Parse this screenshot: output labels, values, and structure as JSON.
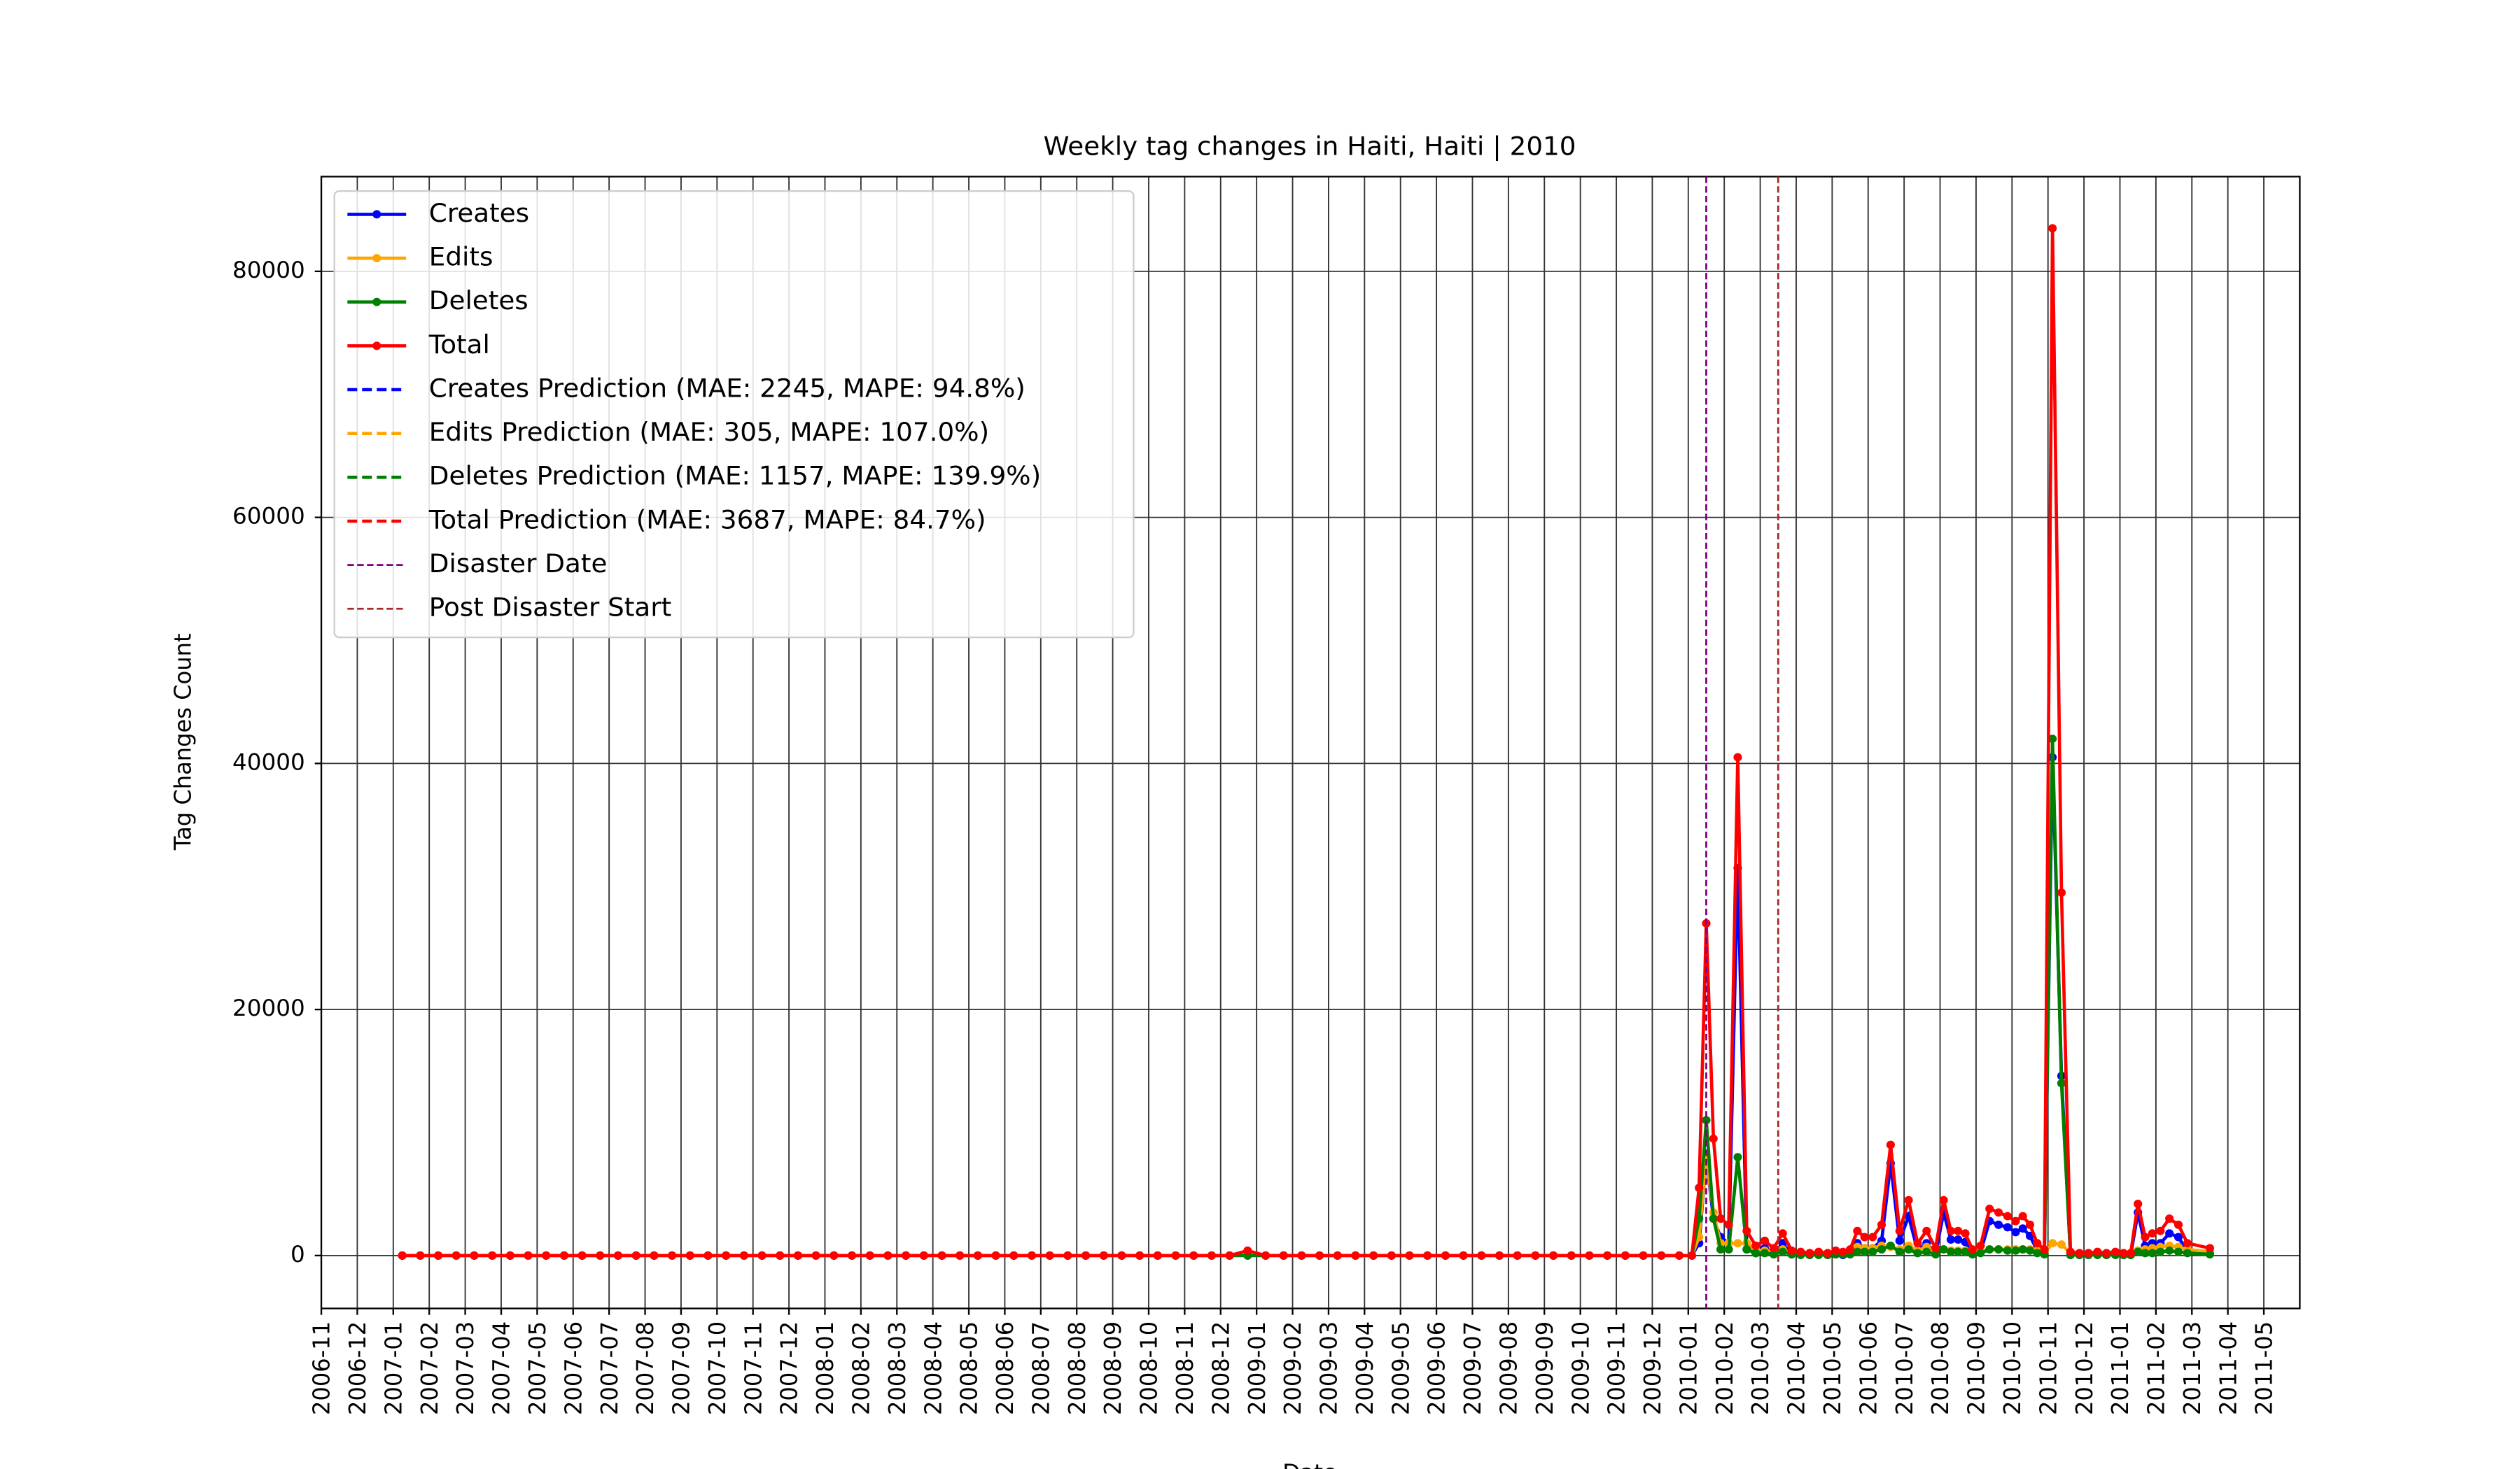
{
  "chart_data": {
    "type": "line",
    "title": "Weekly tag changes in Haiti, Haiti | 2010",
    "xlabel": "Date",
    "ylabel": "Tag Changes Count",
    "xlim": [
      "2006-11",
      "2011-06"
    ],
    "ylim": [
      -4300,
      87700
    ],
    "yticks": [
      0,
      20000,
      40000,
      60000,
      80000
    ],
    "xticks": [
      "2006-11",
      "2006-12",
      "2007-01",
      "2007-02",
      "2007-03",
      "2007-04",
      "2007-05",
      "2007-06",
      "2007-07",
      "2007-08",
      "2007-09",
      "2007-10",
      "2007-11",
      "2007-12",
      "2008-01",
      "2008-02",
      "2008-03",
      "2008-04",
      "2008-05",
      "2008-06",
      "2008-07",
      "2008-08",
      "2008-09",
      "2008-10",
      "2008-11",
      "2008-12",
      "2009-01",
      "2009-02",
      "2009-03",
      "2009-04",
      "2009-05",
      "2009-06",
      "2009-07",
      "2009-08",
      "2009-09",
      "2009-10",
      "2009-11",
      "2009-12",
      "2010-01",
      "2010-02",
      "2010-03",
      "2010-04",
      "2010-05",
      "2010-06",
      "2010-07",
      "2010-08",
      "2010-09",
      "2010-10",
      "2010-11",
      "2010-12",
      "2011-01",
      "2011-02",
      "2011-03",
      "2011-04",
      "2011-05"
    ],
    "grid": true,
    "legend": "upper left",
    "x": [
      "2007-01",
      "2007-01",
      "2007-02",
      "2007-02",
      "2007-03",
      "2007-03",
      "2007-04",
      "2007-04",
      "2007-05",
      "2007-05",
      "2007-06",
      "2007-06",
      "2007-07",
      "2007-07",
      "2007-08",
      "2007-08",
      "2007-09",
      "2007-09",
      "2007-10",
      "2007-10",
      "2007-11",
      "2007-11",
      "2007-12",
      "2007-12",
      "2008-01",
      "2008-01",
      "2008-02",
      "2008-02",
      "2008-03",
      "2008-03",
      "2008-04",
      "2008-04",
      "2008-05",
      "2008-05",
      "2008-06",
      "2008-06",
      "2008-07",
      "2008-07",
      "2008-08",
      "2008-08",
      "2008-09",
      "2008-09",
      "2008-10",
      "2008-10",
      "2008-11",
      "2008-11",
      "2008-12",
      "2008-12",
      "2009-01",
      "2009-01",
      "2009-02",
      "2009-02",
      "2009-03",
      "2009-03",
      "2009-04",
      "2009-04",
      "2009-05",
      "2009-05",
      "2009-06",
      "2009-06",
      "2009-07",
      "2009-07",
      "2009-08",
      "2009-08",
      "2009-09",
      "2009-09",
      "2009-10",
      "2009-10",
      "2009-11",
      "2009-11",
      "2009-12",
      "2009-12",
      "2010-01",
      "2010-01",
      "2010-01",
      "2010-01",
      "2010-01",
      "2010-02",
      "2010-02",
      "2010-02",
      "2010-02",
      "2010-03",
      "2010-03",
      "2010-03",
      "2010-03",
      "2010-04",
      "2010-04",
      "2010-04",
      "2010-04",
      "2010-05",
      "2010-05",
      "2010-05",
      "2010-05",
      "2010-05",
      "2010-06",
      "2010-06",
      "2010-06",
      "2010-06",
      "2010-07",
      "2010-07",
      "2010-07",
      "2010-07",
      "2010-08",
      "2010-08",
      "2010-08",
      "2010-08",
      "2010-08",
      "2010-09",
      "2010-09",
      "2010-09",
      "2010-09",
      "2010-10",
      "2010-10",
      "2010-10",
      "2010-10",
      "2010-10",
      "2010-11",
      "2010-11",
      "2010-11",
      "2010-11",
      "2010-12",
      "2010-12",
      "2010-12",
      "2010-12",
      "2011-01",
      "2011-01",
      "2011-01",
      "2011-01",
      "2011-01",
      "2011-02",
      "2011-02",
      "2011-02",
      "2011-02",
      "2011-03"
    ],
    "series": [
      {
        "name": "Creates",
        "color": "#0000ff",
        "values": [
          0,
          0,
          0,
          0,
          0,
          0,
          0,
          0,
          0,
          0,
          0,
          0,
          0,
          0,
          0,
          0,
          0,
          0,
          0,
          0,
          0,
          0,
          0,
          0,
          0,
          0,
          0,
          0,
          0,
          0,
          0,
          0,
          0,
          0,
          0,
          0,
          0,
          0,
          0,
          0,
          0,
          0,
          0,
          0,
          0,
          0,
          0,
          0,
          0,
          0,
          0,
          0,
          0,
          0,
          0,
          0,
          0,
          0,
          0,
          0,
          0,
          0,
          0,
          0,
          0,
          0,
          0,
          0,
          0,
          0,
          0,
          0,
          0,
          1000,
          8000,
          3000,
          1500,
          1000,
          31500,
          500,
          200,
          600,
          200,
          1000,
          100,
          100,
          50,
          100,
          50,
          100,
          50,
          200,
          1000,
          600,
          600,
          1200,
          7500,
          1200,
          3200,
          400,
          1000,
          200,
          3500,
          1300,
          1300,
          1100,
          200,
          300,
          2800,
          2500,
          2300,
          1900,
          2200,
          1600,
          400,
          200,
          40500,
          14600,
          50,
          50,
          50,
          100,
          50,
          100,
          50,
          50,
          3500,
          800,
          1000,
          1000,
          1800,
          1500,
          300,
          200
        ]
      },
      {
        "name": "Edits",
        "color": "#ffa500",
        "values": [
          0,
          0,
          0,
          0,
          0,
          0,
          0,
          0,
          0,
          0,
          0,
          0,
          0,
          0,
          0,
          0,
          0,
          0,
          0,
          0,
          0,
          0,
          0,
          0,
          0,
          0,
          0,
          0,
          0,
          0,
          0,
          0,
          0,
          0,
          0,
          0,
          0,
          0,
          0,
          0,
          0,
          0,
          0,
          0,
          0,
          0,
          0,
          0,
          0,
          0,
          0,
          0,
          0,
          0,
          0,
          0,
          0,
          0,
          0,
          0,
          0,
          0,
          0,
          0,
          0,
          0,
          0,
          0,
          0,
          0,
          0,
          0,
          0,
          1500,
          8000,
          3500,
          1000,
          1000,
          1000,
          1000,
          400,
          400,
          300,
          500,
          200,
          150,
          100,
          150,
          100,
          200,
          150,
          200,
          700,
          600,
          600,
          800,
          700,
          500,
          800,
          400,
          700,
          300,
          500,
          400,
          400,
          400,
          200,
          300,
          500,
          500,
          500,
          500,
          500,
          500,
          400,
          200,
          1000,
          900,
          200,
          100,
          100,
          150,
          100,
          150,
          100,
          100,
          400,
          500,
          600,
          700,
          800,
          700,
          500,
          300
        ]
      },
      {
        "name": "Deletes",
        "color": "#008000",
        "values": [
          0,
          0,
          0,
          0,
          0,
          0,
          0,
          0,
          0,
          0,
          0,
          0,
          0,
          0,
          0,
          0,
          0,
          0,
          0,
          0,
          0,
          0,
          0,
          0,
          0,
          0,
          0,
          0,
          0,
          0,
          0,
          0,
          0,
          0,
          0,
          0,
          0,
          0,
          0,
          0,
          0,
          0,
          0,
          0,
          0,
          0,
          0,
          0,
          0,
          0,
          0,
          0,
          0,
          0,
          0,
          0,
          0,
          0,
          0,
          0,
          0,
          0,
          0,
          0,
          0,
          0,
          0,
          0,
          0,
          0,
          0,
          0,
          0,
          3000,
          11000,
          3000,
          500,
          500,
          8000,
          500,
          200,
          200,
          100,
          300,
          100,
          50,
          50,
          50,
          50,
          100,
          100,
          100,
          300,
          300,
          300,
          500,
          800,
          300,
          500,
          200,
          300,
          100,
          500,
          300,
          300,
          300,
          100,
          200,
          500,
          500,
          400,
          400,
          500,
          400,
          200,
          100,
          42000,
          14000,
          50,
          50,
          50,
          50,
          50,
          50,
          50,
          50,
          300,
          200,
          200,
          300,
          400,
          300,
          200,
          100
        ]
      },
      {
        "name": "Total",
        "color": "#ff0000",
        "values": [
          0,
          0,
          0,
          0,
          0,
          0,
          0,
          0,
          0,
          0,
          0,
          0,
          0,
          0,
          0,
          0,
          0,
          0,
          0,
          0,
          0,
          0,
          0,
          0,
          0,
          0,
          0,
          0,
          0,
          0,
          0,
          0,
          0,
          0,
          0,
          0,
          0,
          0,
          0,
          0,
          0,
          0,
          0,
          0,
          0,
          0,
          0,
          400,
          0,
          0,
          0,
          0,
          0,
          0,
          0,
          0,
          0,
          0,
          0,
          0,
          0,
          0,
          0,
          0,
          0,
          0,
          0,
          0,
          0,
          0,
          0,
          0,
          0,
          5500,
          27000,
          9500,
          3000,
          2500,
          40500,
          2000,
          800,
          1200,
          600,
          1800,
          400,
          300,
          200,
          300,
          200,
          400,
          300,
          500,
          2000,
          1500,
          1500,
          2500,
          9000,
          2000,
          4500,
          1000,
          2000,
          600,
          4500,
          2000,
          2000,
          1800,
          500,
          800,
          3800,
          3500,
          3200,
          2800,
          3200,
          2500,
          1000,
          500,
          83500,
          29500,
          300,
          200,
          200,
          300,
          200,
          300,
          200,
          200,
          4200,
          1500,
          1800,
          2000,
          3000,
          2500,
          1000,
          600
        ]
      }
    ],
    "predictions": [
      {
        "name": "Creates Prediction (MAE: 2245, MAPE: 94.8%)",
        "color": "#0000ff"
      },
      {
        "name": "Edits Prediction (MAE: 305, MAPE: 107.0%)",
        "color": "#ffa500"
      },
      {
        "name": "Deletes Prediction (MAE: 1157, MAPE: 139.9%)",
        "color": "#008000"
      },
      {
        "name": "Total Prediction (MAE: 3687, MAPE: 84.7%)",
        "color": "#ff0000"
      }
    ],
    "vlines": [
      {
        "name": "Disaster Date",
        "x": "2010-01",
        "color": "#800080"
      },
      {
        "name": "Post Disaster Start",
        "x": "2010-03",
        "color": "#a52a2a"
      }
    ]
  }
}
